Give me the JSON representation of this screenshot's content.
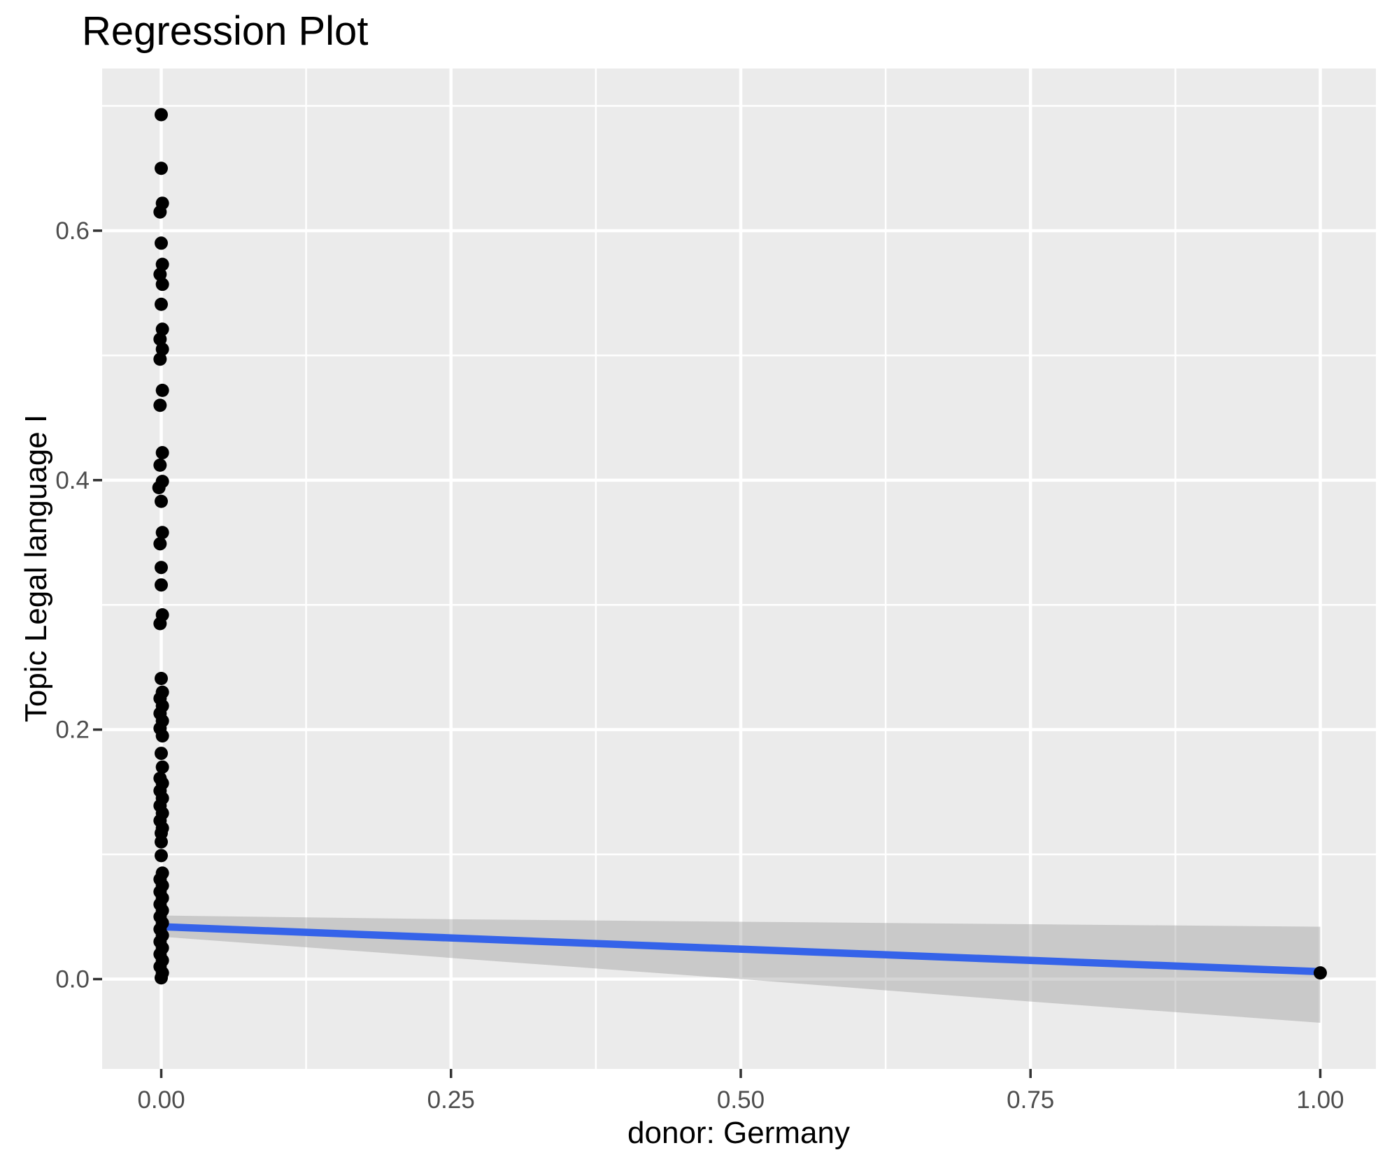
{
  "chart_data": {
    "type": "scatter",
    "title": "Regression Plot",
    "xlabel": "donor: Germany",
    "ylabel": "Topic Legal language I",
    "xlim": [
      -0.051,
      1.048
    ],
    "ylim": [
      -0.072,
      0.73
    ],
    "x_ticks": {
      "values": [
        0,
        0.25,
        0.5,
        0.75,
        1.0
      ],
      "labels": [
        "0.00",
        "0.25",
        "0.50",
        "0.75",
        "1.00"
      ]
    },
    "y_ticks": {
      "values": [
        0,
        0.2,
        0.4,
        0.6
      ],
      "labels": [
        "0.0",
        "0.2",
        "0.4",
        "0.6"
      ]
    },
    "x_minor": [
      0.125,
      0.375,
      0.625,
      0.875
    ],
    "y_minor": [
      0.1,
      0.3,
      0.5,
      0.7
    ],
    "grid": "on",
    "legend_position": "none",
    "colors": {
      "panel_bg": "#EBEBEB",
      "grid": "#FFFFFF",
      "point": "#000000",
      "line": "#3563E9",
      "ribbon": "rgba(150,150,150,0.40)",
      "tick_text": "#4D4D4D",
      "tick_mark": "#333333",
      "text": "#000000"
    },
    "points": [
      {
        "x": 0.0,
        "y": 0.693
      },
      {
        "x": 0.0,
        "y": 0.65
      },
      {
        "x": 0.001,
        "y": 0.622
      },
      {
        "x": -0.001,
        "y": 0.615
      },
      {
        "x": 0.0,
        "y": 0.59
      },
      {
        "x": 0.001,
        "y": 0.573
      },
      {
        "x": -0.001,
        "y": 0.565
      },
      {
        "x": 0.001,
        "y": 0.557
      },
      {
        "x": 0.0,
        "y": 0.541
      },
      {
        "x": 0.001,
        "y": 0.521
      },
      {
        "x": -0.001,
        "y": 0.513
      },
      {
        "x": 0.001,
        "y": 0.505
      },
      {
        "x": -0.001,
        "y": 0.497
      },
      {
        "x": 0.001,
        "y": 0.472
      },
      {
        "x": -0.001,
        "y": 0.46
      },
      {
        "x": 0.001,
        "y": 0.422
      },
      {
        "x": -0.001,
        "y": 0.412
      },
      {
        "x": 0.001,
        "y": 0.399
      },
      {
        "x": -0.002,
        "y": 0.394
      },
      {
        "x": 0.0,
        "y": 0.383
      },
      {
        "x": 0.001,
        "y": 0.358
      },
      {
        "x": -0.001,
        "y": 0.349
      },
      {
        "x": 0.0,
        "y": 0.33
      },
      {
        "x": 0.0,
        "y": 0.316
      },
      {
        "x": 0.001,
        "y": 0.292
      },
      {
        "x": -0.001,
        "y": 0.285
      },
      {
        "x": 0.0,
        "y": 0.241
      },
      {
        "x": 0.001,
        "y": 0.23
      },
      {
        "x": -0.001,
        "y": 0.225
      },
      {
        "x": 0.001,
        "y": 0.219
      },
      {
        "x": -0.001,
        "y": 0.213
      },
      {
        "x": 0.001,
        "y": 0.207
      },
      {
        "x": -0.001,
        "y": 0.201
      },
      {
        "x": 0.001,
        "y": 0.195
      },
      {
        "x": 0.0,
        "y": 0.181
      },
      {
        "x": 0.001,
        "y": 0.17
      },
      {
        "x": -0.001,
        "y": 0.161
      },
      {
        "x": 0.001,
        "y": 0.157
      },
      {
        "x": -0.001,
        "y": 0.151
      },
      {
        "x": 0.001,
        "y": 0.145
      },
      {
        "x": -0.001,
        "y": 0.139
      },
      {
        "x": 0.001,
        "y": 0.133
      },
      {
        "x": -0.001,
        "y": 0.127
      },
      {
        "x": 0.001,
        "y": 0.121
      },
      {
        "x": 0.0,
        "y": 0.117
      },
      {
        "x": 0.0,
        "y": 0.11
      },
      {
        "x": 0.0,
        "y": 0.099
      },
      {
        "x": 0.001,
        "y": 0.085
      },
      {
        "x": -0.001,
        "y": 0.08
      },
      {
        "x": 0.001,
        "y": 0.075
      },
      {
        "x": -0.001,
        "y": 0.07
      },
      {
        "x": 0.001,
        "y": 0.065
      },
      {
        "x": -0.001,
        "y": 0.06
      },
      {
        "x": 0.001,
        "y": 0.055
      },
      {
        "x": -0.001,
        "y": 0.05
      },
      {
        "x": 0.001,
        "y": 0.045
      },
      {
        "x": -0.001,
        "y": 0.04
      },
      {
        "x": 0.001,
        "y": 0.035
      },
      {
        "x": -0.001,
        "y": 0.03
      },
      {
        "x": 0.001,
        "y": 0.025
      },
      {
        "x": -0.001,
        "y": 0.02
      },
      {
        "x": 0.001,
        "y": 0.015
      },
      {
        "x": -0.001,
        "y": 0.01
      },
      {
        "x": 0.001,
        "y": 0.005
      },
      {
        "x": 0.0,
        "y": 0.001
      },
      {
        "x": 1.0,
        "y": 0.005
      }
    ],
    "regression_line": {
      "x": [
        0,
        1
      ],
      "y": [
        0.042,
        0.006
      ]
    },
    "ci_ribbon": {
      "x": [
        0,
        0.25,
        0.5,
        0.75,
        1
      ],
      "upper": [
        0.051,
        0.048,
        0.046,
        0.044,
        0.042
      ],
      "lower": [
        0.034,
        0.017,
        0.0,
        -0.018,
        -0.035
      ]
    }
  }
}
